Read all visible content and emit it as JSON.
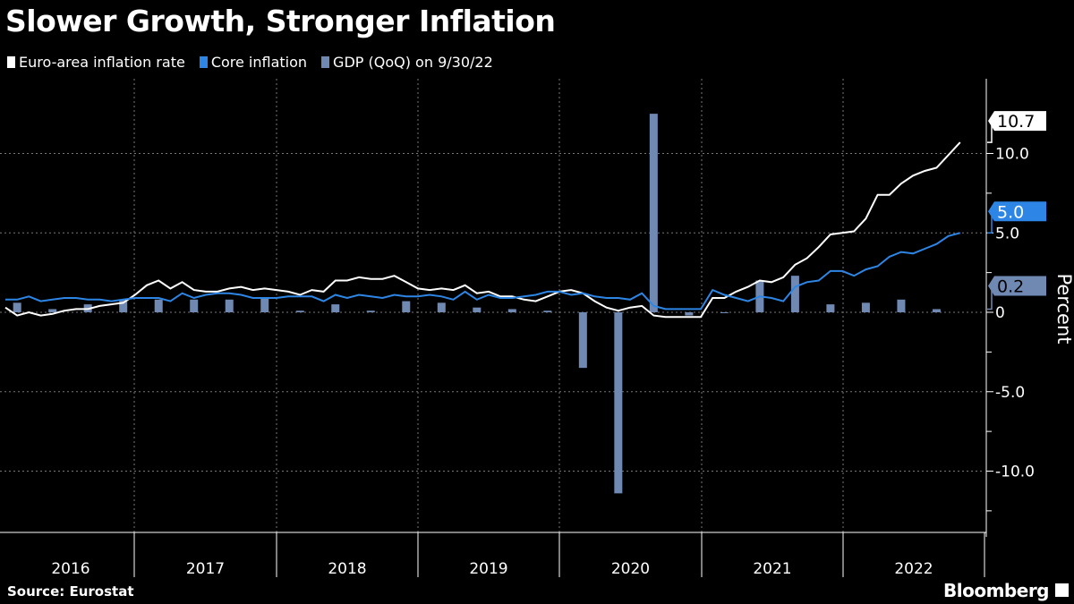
{
  "title": "Slower Growth, Stronger Inflation",
  "source": "Source: Eurostat",
  "brand": "Bloomberg",
  "chart_data": {
    "type": "line+bar",
    "title": "Slower Growth, Stronger Inflation",
    "ylabel": "Percent",
    "ylim": [
      -13.5,
      14
    ],
    "yticks": [
      10,
      5,
      0,
      -5,
      -10
    ],
    "ytick_labels": [
      "10.0",
      "5.0",
      "0",
      "-5.0",
      "-10.0"
    ],
    "xtick_labels": [
      "2016",
      "2017",
      "2018",
      "2019",
      "2020",
      "2021",
      "2022"
    ],
    "grid": true,
    "legend_position": "top-left",
    "start_month": "2016-01",
    "series": [
      {
        "name": "Euro-area inflation rate",
        "type": "line",
        "frequency": "monthly",
        "color": "#ffffff",
        "last_label": "10.7",
        "values": [
          0.3,
          -0.2,
          0.0,
          -0.2,
          -0.1,
          0.1,
          0.2,
          0.2,
          0.4,
          0.5,
          0.6,
          1.1,
          1.7,
          2.0,
          1.5,
          1.9,
          1.4,
          1.3,
          1.3,
          1.5,
          1.6,
          1.4,
          1.5,
          1.4,
          1.3,
          1.1,
          1.4,
          1.3,
          2.0,
          2.0,
          2.2,
          2.1,
          2.1,
          2.3,
          1.9,
          1.5,
          1.4,
          1.5,
          1.4,
          1.7,
          1.2,
          1.3,
          1.0,
          1.0,
          0.8,
          0.7,
          1.0,
          1.3,
          1.4,
          1.2,
          0.7,
          0.3,
          0.1,
          0.3,
          0.4,
          -0.2,
          -0.3,
          -0.3,
          -0.3,
          -0.3,
          0.9,
          0.9,
          1.3,
          1.6,
          2.0,
          1.9,
          2.2,
          3.0,
          3.4,
          4.1,
          4.9,
          5.0,
          5.1,
          5.9,
          7.4,
          7.4,
          8.1,
          8.6,
          8.9,
          9.1,
          9.9,
          10.7
        ]
      },
      {
        "name": "Core inflation",
        "type": "line",
        "frequency": "monthly",
        "color": "#2d86e6",
        "last_label": "5.0",
        "values": [
          0.8,
          0.8,
          1.0,
          0.7,
          0.8,
          0.9,
          0.9,
          0.8,
          0.8,
          0.7,
          0.8,
          0.9,
          0.9,
          0.9,
          0.7,
          1.2,
          0.9,
          1.1,
          1.2,
          1.2,
          1.1,
          0.9,
          0.9,
          0.9,
          1.0,
          1.0,
          1.0,
          0.7,
          1.1,
          0.9,
          1.1,
          1.0,
          0.9,
          1.1,
          1.0,
          1.0,
          1.1,
          1.0,
          0.8,
          1.3,
          0.8,
          1.1,
          0.9,
          0.9,
          1.0,
          1.1,
          1.3,
          1.3,
          1.1,
          1.2,
          1.0,
          0.9,
          0.9,
          0.8,
          1.2,
          0.4,
          0.2,
          0.2,
          0.2,
          0.2,
          1.4,
          1.1,
          0.9,
          0.7,
          1.0,
          0.9,
          0.7,
          1.6,
          1.9,
          2.0,
          2.6,
          2.6,
          2.3,
          2.7,
          2.9,
          3.5,
          3.8,
          3.7,
          4.0,
          4.3,
          4.8,
          5.0
        ]
      },
      {
        "name": "GDP (QoQ) on 9/30/22",
        "type": "bar",
        "frequency": "quarterly",
        "color": "#7089b2",
        "last_label": "0.2",
        "values": [
          0.6,
          0.2,
          0.5,
          0.8,
          0.8,
          0.8,
          0.8,
          0.9,
          0.1,
          0.5,
          0.1,
          0.7,
          0.6,
          0.3,
          0.2,
          0.1,
          -3.5,
          -11.4,
          12.5,
          -0.2,
          0.0,
          2.0,
          2.3,
          0.5,
          0.6,
          0.8,
          0.2
        ]
      }
    ]
  }
}
